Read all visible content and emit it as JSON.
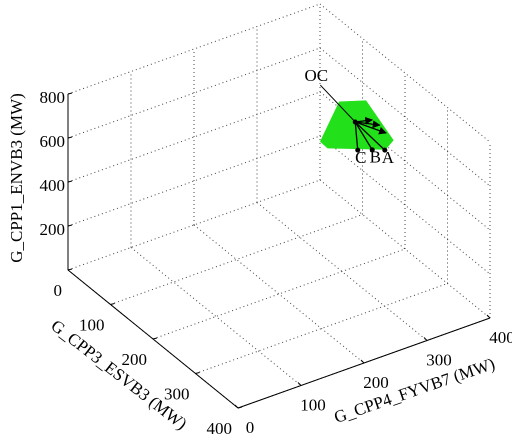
{
  "chart_data": {
    "type": "scatter3d",
    "xlabel": "G_CPP4_FYVB7 (MW)",
    "ylabel": "G_CPP3_ESVB3 (MW)",
    "zlabel": "G_CPP1_ENVB3 (MW)",
    "xlim": [
      0,
      400
    ],
    "xticks": [
      0,
      100,
      200,
      300,
      400
    ],
    "ylim": [
      0,
      400
    ],
    "yticks": [
      0,
      100,
      200,
      300,
      400
    ],
    "zlim": [
      0,
      800
    ],
    "zticks": [
      200,
      400,
      600,
      800
    ],
    "grid": true,
    "region": {
      "color": "#22e01a",
      "x": [
        297,
        337,
        379,
        368,
        278,
        268
      ],
      "y": [
        200,
        200,
        200,
        200,
        200,
        200
      ],
      "z": [
        769,
        733,
        516,
        491,
        589,
        625
      ]
    },
    "center": {
      "x": 321,
      "y": 200,
      "z": 658
    },
    "points": [
      {
        "label": "OC",
        "x": 333,
        "y": 100,
        "z": 657
      },
      {
        "label": "A",
        "x": 368,
        "y": 200,
        "z": 482
      },
      {
        "label": "B",
        "x": 348,
        "y": 200,
        "z": 504
      },
      {
        "label": "C",
        "x": 325,
        "y": 200,
        "z": 526
      }
    ],
    "vectors": {
      "x": [
        360,
        370,
        348
      ],
      "y": [
        200,
        200,
        200
      ],
      "z": [
        604,
        558,
        640
      ]
    },
    "color": "#000000"
  }
}
